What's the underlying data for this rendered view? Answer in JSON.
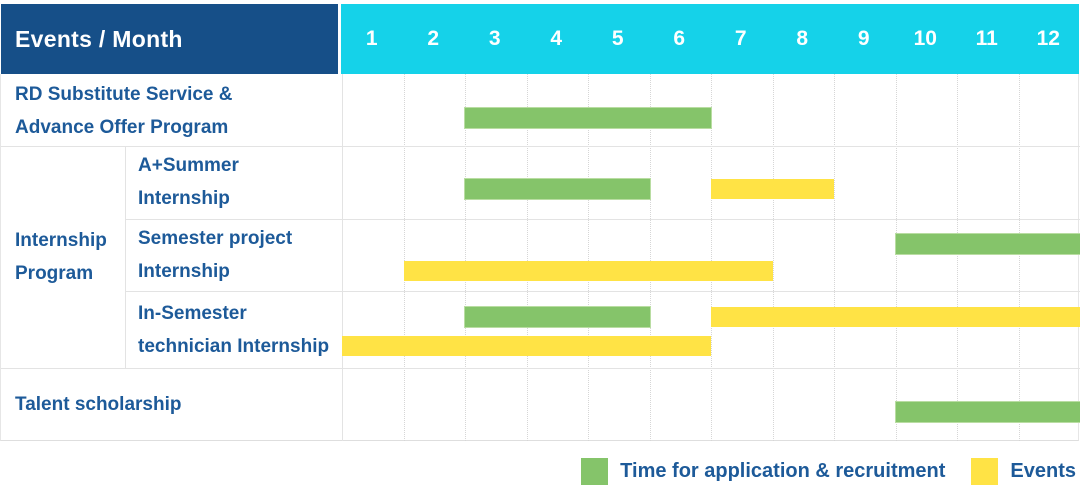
{
  "colors": {
    "header_bg": "#164f88",
    "months_bg": "#15d2e9",
    "application_green": "#85c46a",
    "event_yellow": "#ffe345",
    "label_text": "#1d5a99",
    "header_text": "#ffffff",
    "grid_line": "#e3e3e3"
  },
  "header": {
    "title": "Events / Month",
    "months": [
      "1",
      "2",
      "3",
      "4",
      "5",
      "6",
      "7",
      "8",
      "9",
      "10",
      "11",
      "12"
    ]
  },
  "legend": [
    {
      "key": "application",
      "label": "Time for application & recruitment",
      "color": "#85c46a"
    },
    {
      "key": "event",
      "label": "Events",
      "color": "#ffe345"
    }
  ],
  "chart_data": {
    "type": "gantt",
    "title": "Events / Month",
    "x_axis": {
      "label": "Month",
      "ticks": [
        1,
        2,
        3,
        4,
        5,
        6,
        7,
        8,
        9,
        10,
        11,
        12
      ],
      "range": [
        1,
        12
      ]
    },
    "legend": {
      "application": "Time for application & recruitment",
      "event": "Events"
    },
    "rows": [
      {
        "group": null,
        "label": "RD Substitute Service & Advance Offer Program",
        "label_lines": [
          "RD Substitute Service &",
          "Advance Offer Program"
        ],
        "bars": [
          {
            "type": "application",
            "start": 3,
            "end": 6,
            "lane": "center"
          }
        ]
      },
      {
        "group": "Internship Program",
        "label": "A+Summer Internship",
        "label_lines": [
          "A+Summer",
          "Internship"
        ],
        "bars": [
          {
            "type": "application",
            "start": 3,
            "end": 5,
            "lane": "center"
          },
          {
            "type": "event",
            "start": 7,
            "end": 8,
            "lane": "center"
          }
        ]
      },
      {
        "group": "Internship Program",
        "label": "Semester project Internship",
        "label_lines": [
          "Semester project",
          "Internship"
        ],
        "bars": [
          {
            "type": "application",
            "start": 10,
            "end": 12,
            "lane": "top"
          },
          {
            "type": "event",
            "start": 2,
            "end": 7,
            "lane": "bottom"
          }
        ]
      },
      {
        "group": "Internship Program",
        "label": "In-Semester technician Internship",
        "label_lines": [
          "In-Semester",
          "technician Internship"
        ],
        "bars": [
          {
            "type": "application",
            "start": 3,
            "end": 5,
            "lane": "top"
          },
          {
            "type": "event",
            "start": 7,
            "end": 12,
            "lane": "top"
          },
          {
            "type": "event",
            "start": 1,
            "end": 6,
            "lane": "bottom"
          }
        ]
      },
      {
        "group": null,
        "label": "Talent scholarship",
        "label_lines": [
          "Talent scholarship"
        ],
        "bars": [
          {
            "type": "application",
            "start": 10,
            "end": 12,
            "lane": "center"
          }
        ]
      }
    ],
    "group_label_lines": [
      "Internship",
      "Program"
    ]
  }
}
